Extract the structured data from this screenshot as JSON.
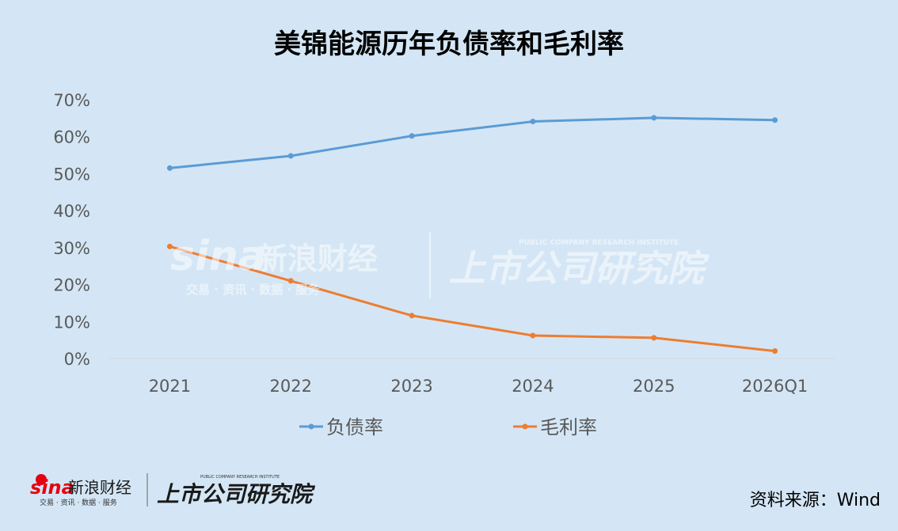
{
  "chart_data": {
    "type": "line",
    "title": "美锦能源历年负债率和毛利率",
    "categories": [
      "2021",
      "2022",
      "2023",
      "2024",
      "2025",
      "2026Q1"
    ],
    "series": [
      {
        "name": "负债率",
        "color": "#5b9bd5",
        "values": [
          51.5,
          54.8,
          60.2,
          64.1,
          65.1,
          64.5
        ]
      },
      {
        "name": "毛利率",
        "color": "#ed7d31",
        "values": [
          30.3,
          21.0,
          11.6,
          6.2,
          5.6,
          2.0
        ]
      }
    ],
    "y_ticks": [
      "0%",
      "10%",
      "20%",
      "30%",
      "40%",
      "50%",
      "60%",
      "70%"
    ],
    "ylim": [
      0,
      70
    ],
    "legend_position": "bottom",
    "grid": false
  },
  "watermark": {
    "brand": "sina",
    "brand_cn": "新浪财经",
    "tagline": "交易 · 资讯 · 数据 · 服务",
    "institute": "上市公司研究院",
    "institute_en": "PUBLIC COMPANY RESEARCH INSTITUTE"
  },
  "footer": {
    "brand": "sina",
    "brand_cn": "新浪财经",
    "tagline": "交易 · 资讯 · 数据 · 服务",
    "institute": "上市公司研究院",
    "institute_en": "PUBLIC COMPANY RESEARCH INSTITUTE",
    "source": "资料来源：Wind"
  }
}
